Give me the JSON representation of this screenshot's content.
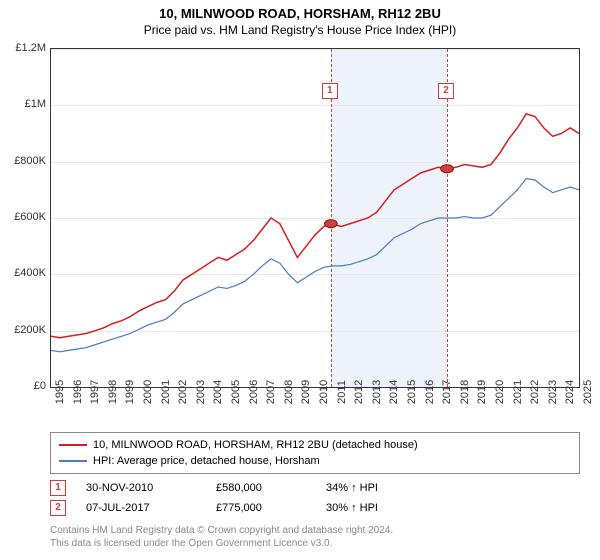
{
  "title": "10, MILNWOOD ROAD, HORSHAM, RH12 2BU",
  "subtitle": "Price paid vs. HM Land Registry's House Price Index (HPI)",
  "chart": {
    "type": "line",
    "x_start_year": 1995,
    "x_end_year": 2025,
    "ylim": [
      0,
      1200000
    ],
    "ytick_step": 200000,
    "y_ticks": [
      "£0",
      "£200K",
      "£400K",
      "£600K",
      "£800K",
      "£1M",
      "£1.2M"
    ],
    "x_ticks": [
      "1995",
      "1996",
      "1997",
      "1998",
      "1999",
      "2000",
      "2001",
      "2002",
      "2003",
      "2004",
      "2005",
      "2006",
      "2007",
      "2008",
      "2009",
      "2010",
      "2011",
      "2012",
      "2013",
      "2014",
      "2015",
      "2016",
      "2017",
      "2018",
      "2019",
      "2020",
      "2021",
      "2022",
      "2023",
      "2024",
      "2025"
    ],
    "grid_color": "#e8e8e8",
    "background_color": "#ffffff",
    "shaded_band": {
      "start_year": 2010.9,
      "end_year": 2017.5,
      "color": "#eef2fa"
    },
    "series": [
      {
        "name": "property",
        "color": "#d42020",
        "width": 1.5,
        "data": [
          [
            1995.0,
            180000
          ],
          [
            1995.5,
            175000
          ],
          [
            1996.0,
            180000
          ],
          [
            1996.5,
            185000
          ],
          [
            1997.0,
            190000
          ],
          [
            1997.5,
            200000
          ],
          [
            1998.0,
            210000
          ],
          [
            1998.5,
            225000
          ],
          [
            1999.0,
            235000
          ],
          [
            1999.5,
            250000
          ],
          [
            2000.0,
            270000
          ],
          [
            2000.5,
            285000
          ],
          [
            2001.0,
            300000
          ],
          [
            2001.5,
            310000
          ],
          [
            2002.0,
            340000
          ],
          [
            2002.5,
            380000
          ],
          [
            2003.0,
            400000
          ],
          [
            2003.5,
            420000
          ],
          [
            2004.0,
            440000
          ],
          [
            2004.5,
            460000
          ],
          [
            2005.0,
            450000
          ],
          [
            2005.5,
            470000
          ],
          [
            2006.0,
            490000
          ],
          [
            2006.5,
            520000
          ],
          [
            2007.0,
            560000
          ],
          [
            2007.5,
            600000
          ],
          [
            2008.0,
            580000
          ],
          [
            2008.5,
            520000
          ],
          [
            2009.0,
            460000
          ],
          [
            2009.5,
            500000
          ],
          [
            2010.0,
            540000
          ],
          [
            2010.5,
            570000
          ],
          [
            2010.9,
            580000
          ],
          [
            2011.5,
            570000
          ],
          [
            2012.0,
            580000
          ],
          [
            2012.5,
            590000
          ],
          [
            2013.0,
            600000
          ],
          [
            2013.5,
            620000
          ],
          [
            2014.0,
            660000
          ],
          [
            2014.5,
            700000
          ],
          [
            2015.0,
            720000
          ],
          [
            2015.5,
            740000
          ],
          [
            2016.0,
            760000
          ],
          [
            2016.5,
            770000
          ],
          [
            2017.0,
            780000
          ],
          [
            2017.5,
            775000
          ],
          [
            2018.0,
            780000
          ],
          [
            2018.5,
            790000
          ],
          [
            2019.0,
            785000
          ],
          [
            2019.5,
            780000
          ],
          [
            2020.0,
            790000
          ],
          [
            2020.5,
            830000
          ],
          [
            2021.0,
            880000
          ],
          [
            2021.5,
            920000
          ],
          [
            2022.0,
            970000
          ],
          [
            2022.5,
            960000
          ],
          [
            2023.0,
            920000
          ],
          [
            2023.5,
            890000
          ],
          [
            2024.0,
            900000
          ],
          [
            2024.5,
            920000
          ],
          [
            2025.0,
            900000
          ]
        ]
      },
      {
        "name": "hpi",
        "color": "#4a7ac8",
        "width": 1.2,
        "data": [
          [
            1995.0,
            130000
          ],
          [
            1995.5,
            125000
          ],
          [
            1996.0,
            130000
          ],
          [
            1996.5,
            135000
          ],
          [
            1997.0,
            140000
          ],
          [
            1997.5,
            150000
          ],
          [
            1998.0,
            160000
          ],
          [
            1998.5,
            170000
          ],
          [
            1999.0,
            180000
          ],
          [
            1999.5,
            190000
          ],
          [
            2000.0,
            205000
          ],
          [
            2000.5,
            220000
          ],
          [
            2001.0,
            230000
          ],
          [
            2001.5,
            240000
          ],
          [
            2002.0,
            265000
          ],
          [
            2002.5,
            295000
          ],
          [
            2003.0,
            310000
          ],
          [
            2003.5,
            325000
          ],
          [
            2004.0,
            340000
          ],
          [
            2004.5,
            355000
          ],
          [
            2005.0,
            350000
          ],
          [
            2005.5,
            360000
          ],
          [
            2006.0,
            375000
          ],
          [
            2006.5,
            400000
          ],
          [
            2007.0,
            430000
          ],
          [
            2007.5,
            455000
          ],
          [
            2008.0,
            440000
          ],
          [
            2008.5,
            400000
          ],
          [
            2009.0,
            370000
          ],
          [
            2009.5,
            390000
          ],
          [
            2010.0,
            410000
          ],
          [
            2010.5,
            425000
          ],
          [
            2011.0,
            430000
          ],
          [
            2011.5,
            430000
          ],
          [
            2012.0,
            435000
          ],
          [
            2012.5,
            445000
          ],
          [
            2013.0,
            455000
          ],
          [
            2013.5,
            470000
          ],
          [
            2014.0,
            500000
          ],
          [
            2014.5,
            530000
          ],
          [
            2015.0,
            545000
          ],
          [
            2015.5,
            560000
          ],
          [
            2016.0,
            580000
          ],
          [
            2016.5,
            590000
          ],
          [
            2017.0,
            600000
          ],
          [
            2017.5,
            600000
          ],
          [
            2018.0,
            600000
          ],
          [
            2018.5,
            605000
          ],
          [
            2019.0,
            600000
          ],
          [
            2019.5,
            600000
          ],
          [
            2020.0,
            610000
          ],
          [
            2020.5,
            640000
          ],
          [
            2021.0,
            670000
          ],
          [
            2021.5,
            700000
          ],
          [
            2022.0,
            740000
          ],
          [
            2022.5,
            735000
          ],
          [
            2023.0,
            710000
          ],
          [
            2023.5,
            690000
          ],
          [
            2024.0,
            700000
          ],
          [
            2024.5,
            710000
          ],
          [
            2025.0,
            700000
          ]
        ]
      }
    ],
    "markers": [
      {
        "num": "1",
        "year": 2010.9,
        "value": 580000
      },
      {
        "num": "2",
        "year": 2017.5,
        "value": 775000
      }
    ]
  },
  "legend": {
    "items": [
      {
        "color": "#d42020",
        "label": "10, MILNWOOD ROAD, HORSHAM, RH12 2BU (detached house)"
      },
      {
        "color": "#4a7ac8",
        "label": "HPI: Average price, detached house, Horsham"
      }
    ]
  },
  "events": [
    {
      "num": "1",
      "date": "30-NOV-2010",
      "price": "£580,000",
      "delta": "34% ↑ HPI"
    },
    {
      "num": "2",
      "date": "07-JUL-2017",
      "price": "£775,000",
      "delta": "30% ↑ HPI"
    }
  ],
  "footer": {
    "line1": "Contains HM Land Registry data © Crown copyright and database right 2024.",
    "line2": "This data is licensed under the Open Government Licence v3.0."
  }
}
